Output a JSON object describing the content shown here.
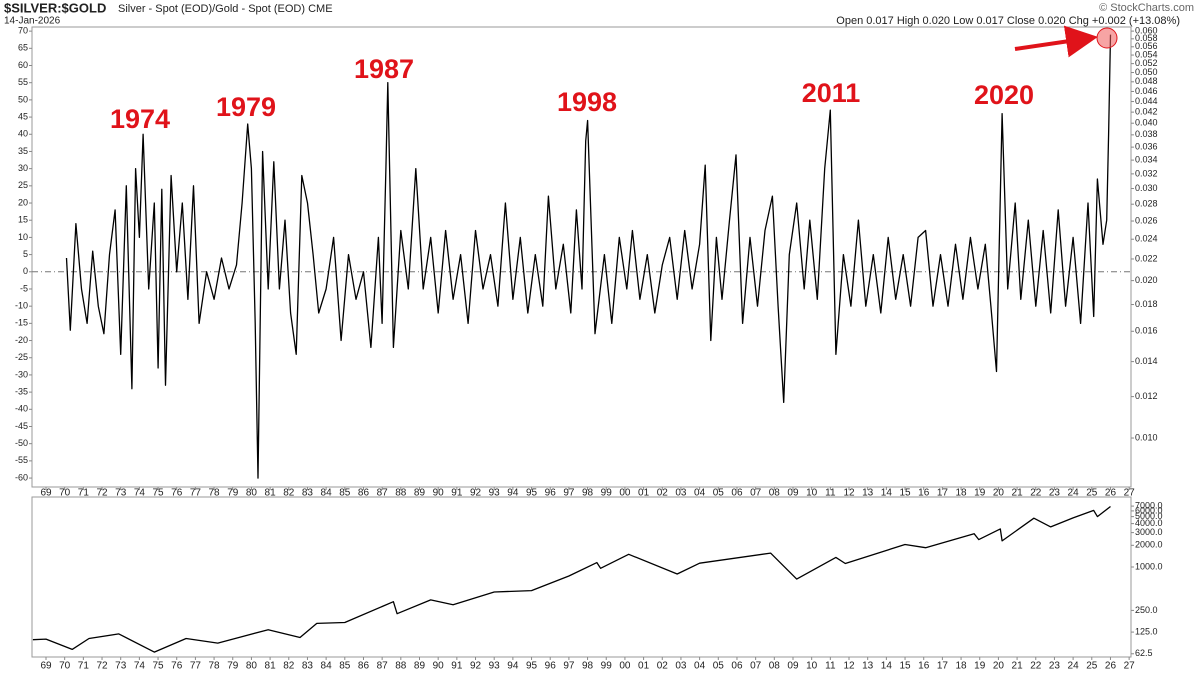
{
  "chart_data": [
    {
      "type": "line",
      "title": "$SILVER:$GOLD",
      "subtitle": "Silver - Spot (EOD)/Gold - Spot (EOD) CME",
      "date": "14-Jan-2026",
      "quote": "Open 0.017 High 0.020 Low 0.017 Close 0.020 Chg +0.002 (+13.08%)",
      "watermark": "© StockCharts.com",
      "annotations": [
        "1974",
        "1979",
        "1987",
        "1998",
        "2011",
        "2020"
      ],
      "color": "#000000",
      "reference_line": 0,
      "xlim": [
        1968.25,
        2027.1
      ],
      "ylim": [
        -62.6,
        71.2
      ],
      "yticks": [
        70,
        65,
        60,
        55,
        50,
        45,
        40,
        35,
        30,
        25,
        20,
        15,
        10,
        5,
        0,
        -5,
        -10,
        -15,
        -20,
        -25,
        -30,
        -35,
        -40,
        -45,
        -50,
        -55,
        -60
      ],
      "y2log": true,
      "y2lim": [
        0.00806,
        0.0611
      ],
      "y2ticks": [
        {
          "value": 0.06,
          "label": "0.060"
        },
        {
          "value": 0.058,
          "label": "0.058"
        },
        {
          "value": 0.056,
          "label": "0.056"
        },
        {
          "value": 0.054,
          "label": "0.054"
        },
        {
          "value": 0.052,
          "label": "0.052"
        },
        {
          "value": 0.05,
          "label": "0.050"
        },
        {
          "value": 0.048,
          "label": "0.048"
        },
        {
          "value": 0.046,
          "label": "0.046"
        },
        {
          "value": 0.044,
          "label": "0.044"
        },
        {
          "value": 0.042,
          "label": "0.042"
        },
        {
          "value": 0.04,
          "label": "0.040"
        },
        {
          "value": 0.038,
          "label": "0.038"
        },
        {
          "value": 0.036,
          "label": "0.036"
        },
        {
          "value": 0.034,
          "label": "0.034"
        },
        {
          "value": 0.032,
          "label": "0.032"
        },
        {
          "value": 0.03,
          "label": "0.030"
        },
        {
          "value": 0.028,
          "label": "0.028"
        },
        {
          "value": 0.026,
          "label": "0.026"
        },
        {
          "value": 0.024,
          "label": "0.024"
        },
        {
          "value": 0.022,
          "label": "0.022"
        },
        {
          "value": 0.02,
          "label": "0.020"
        },
        {
          "value": 0.018,
          "label": "0.018"
        },
        {
          "value": 0.016,
          "label": "0.016"
        },
        {
          "value": 0.014,
          "label": "0.014"
        },
        {
          "value": 0.012,
          "label": "0.012"
        },
        {
          "value": 0.01,
          "label": "0.010"
        }
      ],
      "xticks": [
        {
          "value": 1969,
          "label": "69"
        },
        {
          "value": 1970,
          "label": "70"
        },
        {
          "value": 1971,
          "label": "71"
        },
        {
          "value": 1972,
          "label": "72"
        },
        {
          "value": 1973,
          "label": "73"
        },
        {
          "value": 1974,
          "label": "74"
        },
        {
          "value": 1975,
          "label": "75"
        },
        {
          "value": 1976,
          "label": "76"
        },
        {
          "value": 1977,
          "label": "77"
        },
        {
          "value": 1978,
          "label": "78"
        },
        {
          "value": 1979,
          "label": "79"
        },
        {
          "value": 1980,
          "label": "80"
        },
        {
          "value": 1981,
          "label": "81"
        },
        {
          "value": 1982,
          "label": "82"
        },
        {
          "value": 1983,
          "label": "83"
        },
        {
          "value": 1984,
          "label": "84"
        },
        {
          "value": 1985,
          "label": "85"
        },
        {
          "value": 1986,
          "label": "86"
        },
        {
          "value": 1987,
          "label": "87"
        },
        {
          "value": 1988,
          "label": "88"
        },
        {
          "value": 1989,
          "label": "89"
        },
        {
          "value": 1990,
          "label": "90"
        },
        {
          "value": 1991,
          "label": "91"
        },
        {
          "value": 1992,
          "label": "92"
        },
        {
          "value": 1993,
          "label": "93"
        },
        {
          "value": 1994,
          "label": "94"
        },
        {
          "value": 1995,
          "label": "95"
        },
        {
          "value": 1996,
          "label": "96"
        },
        {
          "value": 1997,
          "label": "97"
        },
        {
          "value": 1998,
          "label": "98"
        },
        {
          "value": 1999,
          "label": "99"
        },
        {
          "value": 2000,
          "label": "00"
        },
        {
          "value": 2001,
          "label": "01"
        },
        {
          "value": 2002,
          "label": "02"
        },
        {
          "value": 2003,
          "label": "03"
        },
        {
          "value": 2004,
          "label": "04"
        },
        {
          "value": 2005,
          "label": "05"
        },
        {
          "value": 2006,
          "label": "06"
        },
        {
          "value": 2007,
          "label": "07"
        },
        {
          "value": 2008,
          "label": "08"
        },
        {
          "value": 2009,
          "label": "09"
        },
        {
          "value": 2010,
          "label": "10"
        },
        {
          "value": 2011,
          "label": "11"
        },
        {
          "value": 2012,
          "label": "12"
        },
        {
          "value": 2013,
          "label": "13"
        },
        {
          "value": 2014,
          "label": "14"
        },
        {
          "value": 2015,
          "label": "15"
        },
        {
          "value": 2016,
          "label": "16"
        },
        {
          "value": 2017,
          "label": "17"
        },
        {
          "value": 2018,
          "label": "18"
        },
        {
          "value": 2019,
          "label": "19"
        },
        {
          "value": 2020,
          "label": "20"
        },
        {
          "value": 2021,
          "label": "21"
        },
        {
          "value": 2022,
          "label": "22"
        },
        {
          "value": 2023,
          "label": "23"
        },
        {
          "value": 2024,
          "label": "24"
        },
        {
          "value": 2025,
          "label": "25"
        },
        {
          "value": 2026,
          "label": "26"
        },
        {
          "value": 2027,
          "label": "27"
        }
      ],
      "x": [
        1970.1,
        1970.3,
        1970.6,
        1970.9,
        1971.2,
        1971.5,
        1971.8,
        1972.1,
        1972.4,
        1972.7,
        1973.0,
        1973.3,
        1973.6,
        1973.8,
        1974.0,
        1974.2,
        1974.5,
        1974.8,
        1975.0,
        1975.2,
        1975.4,
        1975.7,
        1976.0,
        1976.3,
        1976.6,
        1976.9,
        1977.2,
        1977.6,
        1978.0,
        1978.4,
        1978.8,
        1979.2,
        1979.5,
        1979.8,
        1980.0,
        1980.2,
        1980.35,
        1980.6,
        1980.9,
        1981.2,
        1981.5,
        1981.8,
        1982.1,
        1982.4,
        1982.7,
        1983.0,
        1983.3,
        1983.6,
        1984.0,
        1984.4,
        1984.8,
        1985.2,
        1985.6,
        1986.0,
        1986.4,
        1986.8,
        1987.0,
        1987.2,
        1987.3,
        1987.6,
        1988.0,
        1988.4,
        1988.8,
        1989.2,
        1989.6,
        1990.0,
        1990.4,
        1990.8,
        1991.2,
        1991.6,
        1992.0,
        1992.4,
        1992.8,
        1993.2,
        1993.6,
        1994.0,
        1994.4,
        1994.8,
        1995.2,
        1995.6,
        1995.9,
        1996.3,
        1996.7,
        1997.1,
        1997.4,
        1997.7,
        1997.9,
        1998.0,
        1998.4,
        1998.9,
        1999.3,
        1999.7,
        2000.1,
        2000.4,
        2000.8,
        2001.2,
        2001.6,
        2002.0,
        2002.4,
        2002.8,
        2003.2,
        2003.6,
        2004.0,
        2004.3,
        2004.6,
        2004.9,
        2005.2,
        2005.6,
        2005.95,
        2006.3,
        2006.7,
        2007.1,
        2007.5,
        2007.9,
        2008.2,
        2008.5,
        2008.8,
        2009.2,
        2009.6,
        2009.9,
        2010.3,
        2010.7,
        2011.0,
        2011.3,
        2011.7,
        2012.1,
        2012.5,
        2012.9,
        2013.3,
        2013.7,
        2014.1,
        2014.5,
        2014.9,
        2015.3,
        2015.7,
        2016.1,
        2016.5,
        2016.9,
        2017.3,
        2017.7,
        2018.1,
        2018.5,
        2018.9,
        2019.3,
        2019.6,
        2019.9,
        2020.2,
        2020.5,
        2020.9,
        2021.2,
        2021.6,
        2022.0,
        2022.4,
        2022.8,
        2023.2,
        2023.6,
        2024.0,
        2024.4,
        2024.8,
        2025.1,
        2025.3,
        2025.6,
        2025.8,
        2025.9,
        2026.0
      ],
      "values": [
        4,
        -17,
        14,
        -5,
        -15,
        6,
        -10,
        -18,
        5,
        18,
        -24,
        25,
        -34,
        30,
        10,
        40,
        -5,
        20,
        -28,
        24,
        -33,
        28,
        0,
        20,
        -8,
        25,
        -15,
        0,
        -8,
        4,
        -5,
        2,
        20,
        43,
        30,
        -15,
        -60,
        35,
        -5,
        32,
        -5,
        15,
        -12,
        -24,
        28,
        20,
        5,
        -12,
        -5,
        10,
        -20,
        5,
        -8,
        0,
        -22,
        10,
        -15,
        30,
        55,
        -22,
        12,
        -5,
        30,
        -5,
        10,
        -12,
        12,
        -8,
        5,
        -15,
        12,
        -5,
        5,
        -10,
        20,
        -8,
        10,
        -12,
        5,
        -10,
        22,
        -5,
        8,
        -12,
        18,
        -5,
        38,
        44,
        -18,
        5,
        -15,
        10,
        -5,
        12,
        -8,
        5,
        -12,
        2,
        10,
        -8,
        12,
        -5,
        8,
        31,
        -20,
        10,
        -8,
        15,
        34,
        -15,
        10,
        -10,
        12,
        22,
        -10,
        -38,
        5,
        20,
        -5,
        15,
        -8,
        30,
        47,
        -24,
        5,
        -10,
        15,
        -10,
        5,
        -12,
        10,
        -8,
        5,
        -10,
        10,
        12,
        -10,
        5,
        -10,
        8,
        -8,
        10,
        -5,
        8,
        -10,
        -29,
        46,
        -5,
        20,
        -8,
        15,
        -10,
        12,
        -12,
        18,
        -10,
        10,
        -15,
        20,
        -13,
        27,
        8,
        15,
        40,
        69
      ]
    },
    {
      "type": "line",
      "color": "#000000",
      "log_scale": true,
      "xlim": [
        1968.25,
        2027.1
      ],
      "ylim": [
        56.4,
        9360
      ],
      "yticks": [
        {
          "value": 7000,
          "label": "7000.0"
        },
        {
          "value": 6000,
          "label": "6000.0"
        },
        {
          "value": 5000,
          "label": "5000.0"
        },
        {
          "value": 4000,
          "label": "4000.0"
        },
        {
          "value": 3000,
          "label": "3000.0"
        },
        {
          "value": 2000,
          "label": "2000.0"
        },
        {
          "value": 1000,
          "label": "1000.0"
        },
        {
          "value": 250,
          "label": "250.0"
        },
        {
          "value": 125,
          "label": "125.0"
        },
        {
          "value": 62.5,
          "label": "62.5"
        }
      ],
      "x": [
        1968.3,
        1969.0,
        1970.4,
        1971.3,
        1972.9,
        1974.8,
        1976.5,
        1978.2,
        1980.9,
        1982.6,
        1983.5,
        1985.0,
        1987.6,
        1987.8,
        1989.6,
        1990.8,
        1993.0,
        1995.0,
        1997.0,
        1998.5,
        1998.7,
        2000.2,
        2002.8,
        2004.0,
        2007.8,
        2009.2,
        2011.3,
        2011.8,
        2015.0,
        2016.1,
        2018.7,
        2018.95,
        2020.1,
        2020.2,
        2021.9,
        2022.8,
        2024.0,
        2025.1,
        2025.3,
        2026.0
      ],
      "values": [
        98,
        100,
        72,
        102,
        118,
        66,
        102,
        88,
        135,
        105,
        165,
        170,
        330,
        225,
        350,
        300,
        450,
        470,
        750,
        1150,
        960,
        1500,
        800,
        1130,
        1560,
        680,
        1360,
        1120,
        2050,
        1850,
        2900,
        2400,
        3380,
        2300,
        4750,
        3600,
        4800,
        6100,
        5000,
        6900
      ]
    }
  ]
}
